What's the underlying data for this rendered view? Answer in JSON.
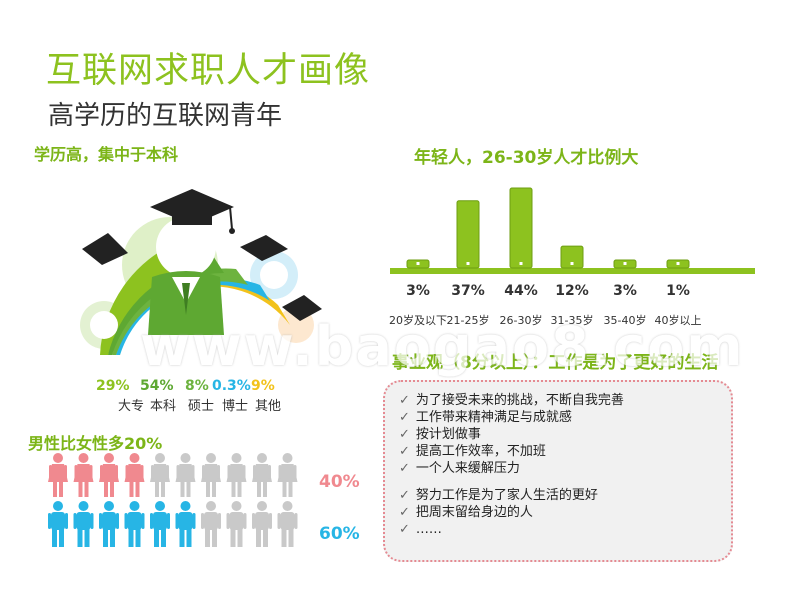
{
  "title": "互联网求职人才画像",
  "subtitle": "高学历的互联网青年",
  "education": {
    "heading": "学历高，集中于本科",
    "items": [
      {
        "pct": "29%",
        "label": "大专",
        "color": "#8dc21f"
      },
      {
        "pct": "54%",
        "label": "本科",
        "color": "#5ea832"
      },
      {
        "pct": "8%",
        "label": "硕士",
        "color": "#6db33f"
      },
      {
        "pct": "0.3%",
        "label": "博士",
        "color": "#27b5e5"
      },
      {
        "pct": "9%",
        "label": "其他",
        "color": "#f2c21b"
      }
    ]
  },
  "age": {
    "heading": "年轻人，26-30岁人才比例大",
    "chart_data": {
      "type": "bar",
      "categories": [
        "20岁及以下",
        "21-25岁",
        "26-30岁",
        "31-35岁",
        "35-40岁",
        "40岁以上"
      ],
      "values": [
        3,
        37,
        44,
        12,
        3,
        1
      ],
      "labels": [
        "3%",
        "37%",
        "44%",
        "12%",
        "3%",
        "1%"
      ],
      "ylim": [
        0,
        44
      ],
      "color": "#8dc21f"
    }
  },
  "work": {
    "heading": "事业观（8分以上）：工作是为了更好的生活",
    "items": [
      "为了接受未来的挑战，不断自我完善",
      "工作带来精神满足与成就感",
      "按计划做事",
      "提高工作效率，不加班",
      "一个人来缓解压力",
      "努力工作是为了家人生活的更好",
      "把周末留给身边的人",
      "……"
    ]
  },
  "gender": {
    "heading": "男性比女性多20%",
    "female": {
      "pct": "40%",
      "value": 40,
      "color": "#f0898f"
    },
    "male": {
      "pct": "60%",
      "value": 60,
      "color": "#27b5e5"
    },
    "gray": "#c9c9c9"
  },
  "watermark": "www.baogao8.com"
}
